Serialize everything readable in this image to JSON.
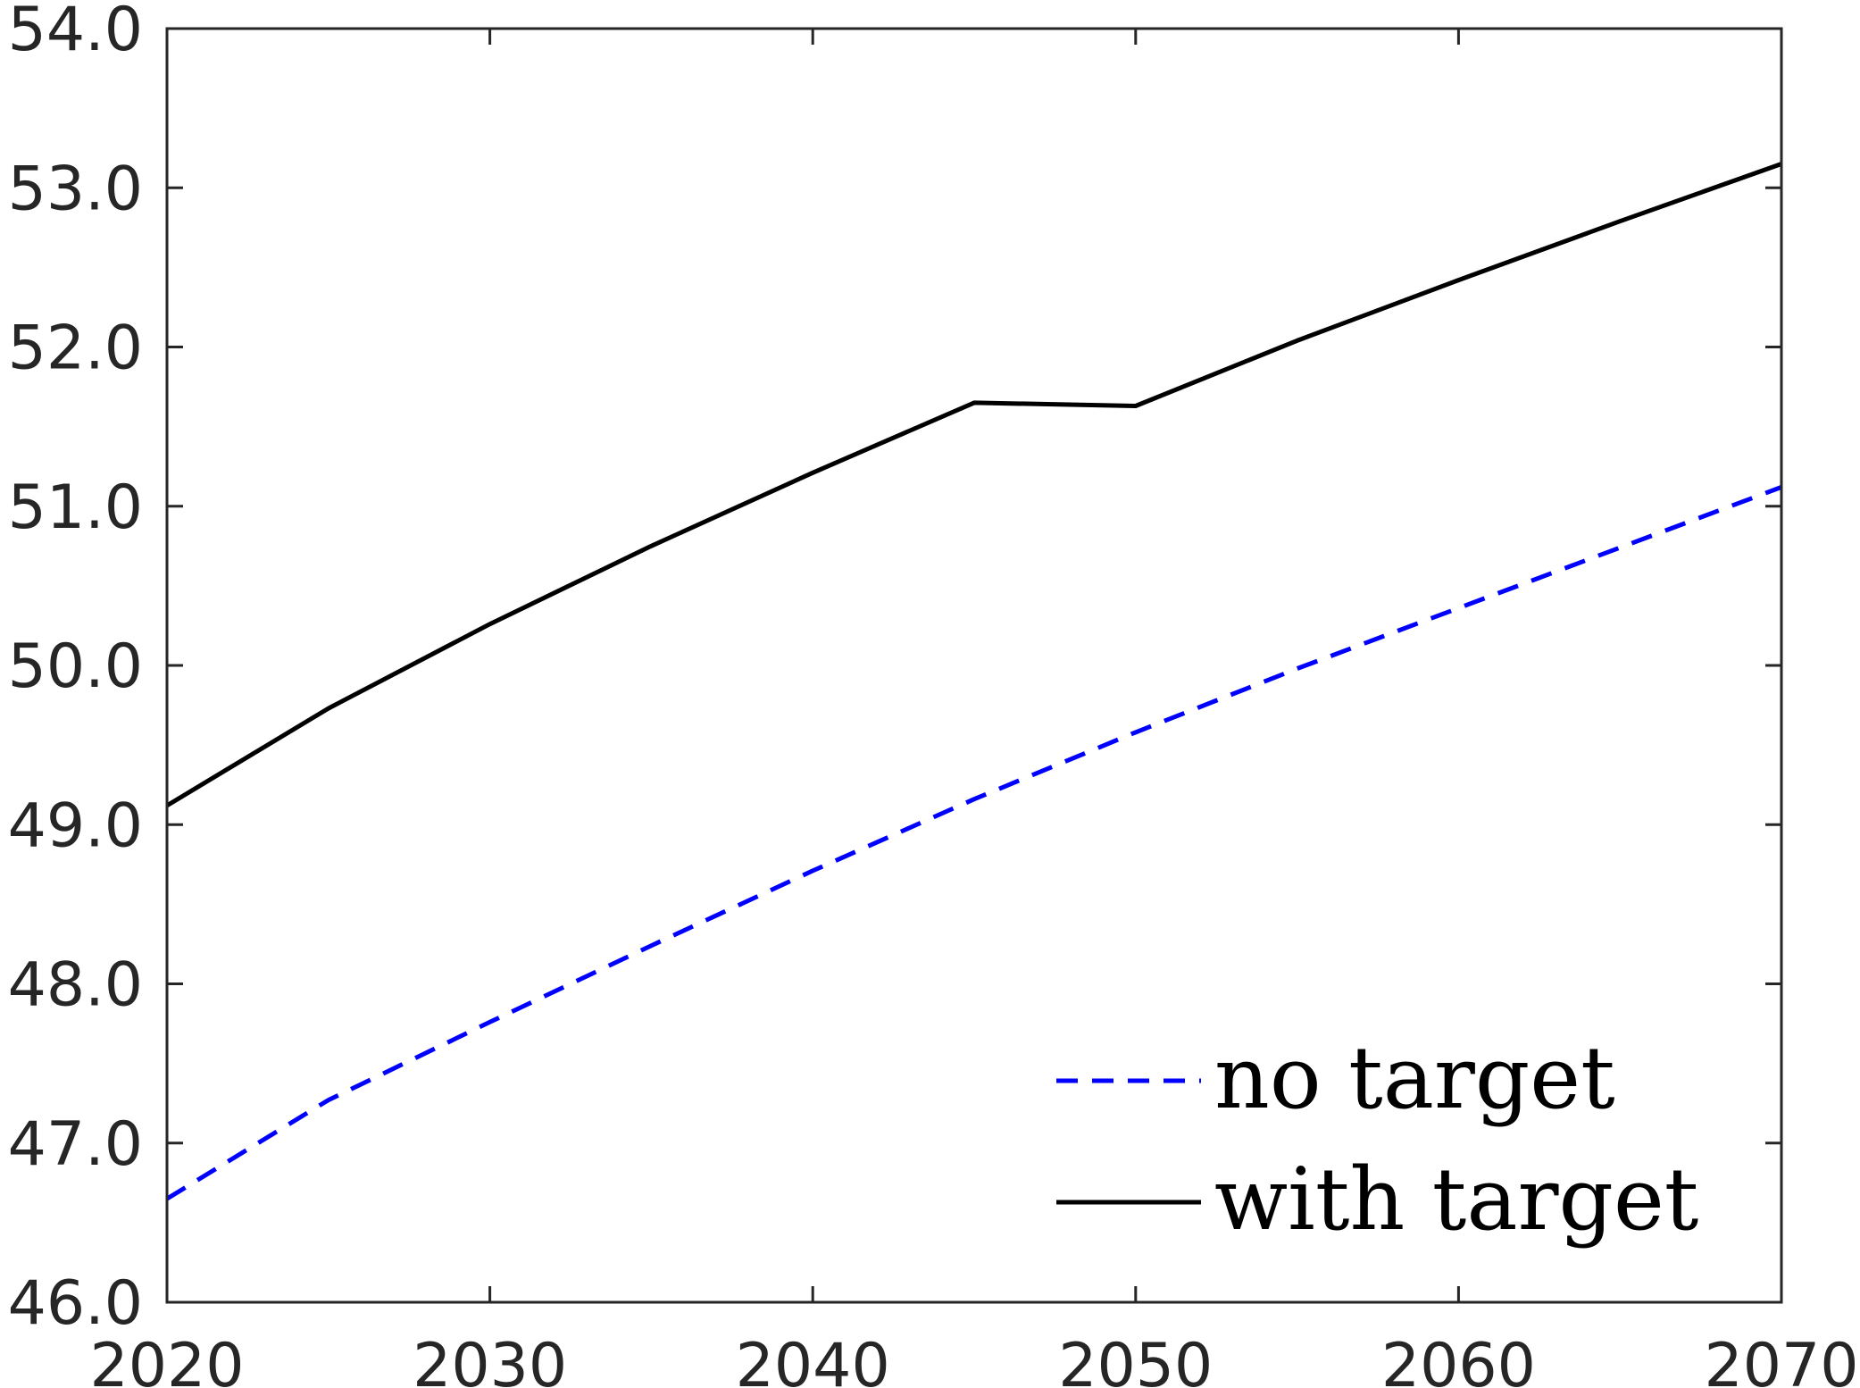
{
  "chart_data": {
    "type": "line",
    "title": "",
    "xlabel": "",
    "ylabel": "",
    "xlim": [
      2020,
      2070
    ],
    "ylim": [
      46.0,
      54.0
    ],
    "x_ticks": [
      "2020",
      "2030",
      "2040",
      "2050",
      "2060",
      "2070"
    ],
    "y_ticks": [
      "46.0",
      "47.0",
      "48.0",
      "49.0",
      "50.0",
      "51.0",
      "52.0",
      "53.0",
      "54.0"
    ],
    "grid": false,
    "legend_position": "bottom-right",
    "series": [
      {
        "name": "no target",
        "style": "dashed",
        "color": "#0000ff",
        "x": [
          2020,
          2025,
          2030,
          2035,
          2040,
          2045,
          2050,
          2055,
          2060,
          2065,
          2070
        ],
        "values": [
          46.65,
          47.27,
          47.76,
          48.24,
          48.71,
          49.16,
          49.58,
          49.98,
          50.36,
          50.74,
          51.12
        ]
      },
      {
        "name": "with target",
        "style": "solid",
        "color": "#000000",
        "x": [
          2020,
          2025,
          2030,
          2035,
          2040,
          2045,
          2050,
          2055,
          2060,
          2065,
          2070
        ],
        "values": [
          49.12,
          49.73,
          50.26,
          50.75,
          51.21,
          51.65,
          51.63,
          52.04,
          52.42,
          52.79,
          53.15
        ]
      }
    ]
  }
}
